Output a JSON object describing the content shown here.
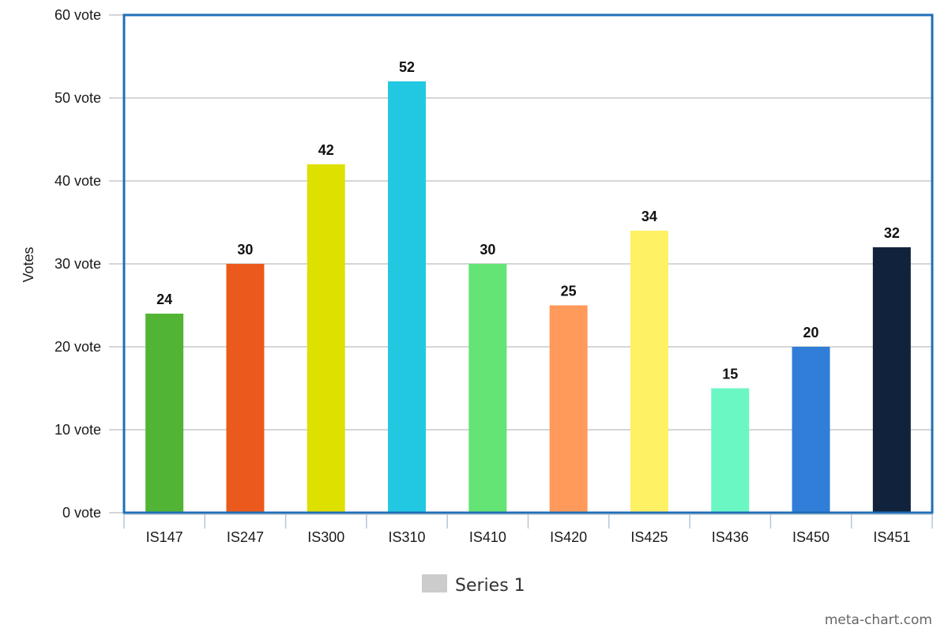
{
  "chart_data": {
    "type": "bar",
    "categories": [
      "IS147",
      "IS247",
      "IS300",
      "IS310",
      "IS410",
      "IS420",
      "IS425",
      "IS436",
      "IS450",
      "IS451"
    ],
    "series": [
      {
        "name": "Series 1",
        "values": [
          24,
          30,
          42,
          52,
          30,
          25,
          34,
          15,
          20,
          32
        ]
      }
    ],
    "data_labels": [
      "24",
      "30",
      "42",
      "52",
      "30",
      "25",
      "34",
      "15",
      "20",
      "32"
    ],
    "bar_colors": [
      "#52b434",
      "#eb5a1c",
      "#dee000",
      "#22c8e2",
      "#64e474",
      "#ff9a5a",
      "#fef164",
      "#6af7c4",
      "#307ed7",
      "#11233c"
    ],
    "ylabel": "Votes",
    "xlabel": "",
    "ylim": [
      0,
      60
    ],
    "y_ticks": [
      0,
      10,
      20,
      30,
      40,
      50,
      60
    ],
    "y_tick_labels": [
      "0 vote",
      "10 vote",
      "20 vote",
      "30 vote",
      "40 vote",
      "50 vote",
      "60 vote"
    ],
    "grid": true,
    "legend_position": "bottom-center",
    "legend_color": "#cccccc",
    "plot_border_color": "#1f6fb5",
    "gridline_color": "#c8c8c8"
  },
  "watermark": "meta-chart.com"
}
